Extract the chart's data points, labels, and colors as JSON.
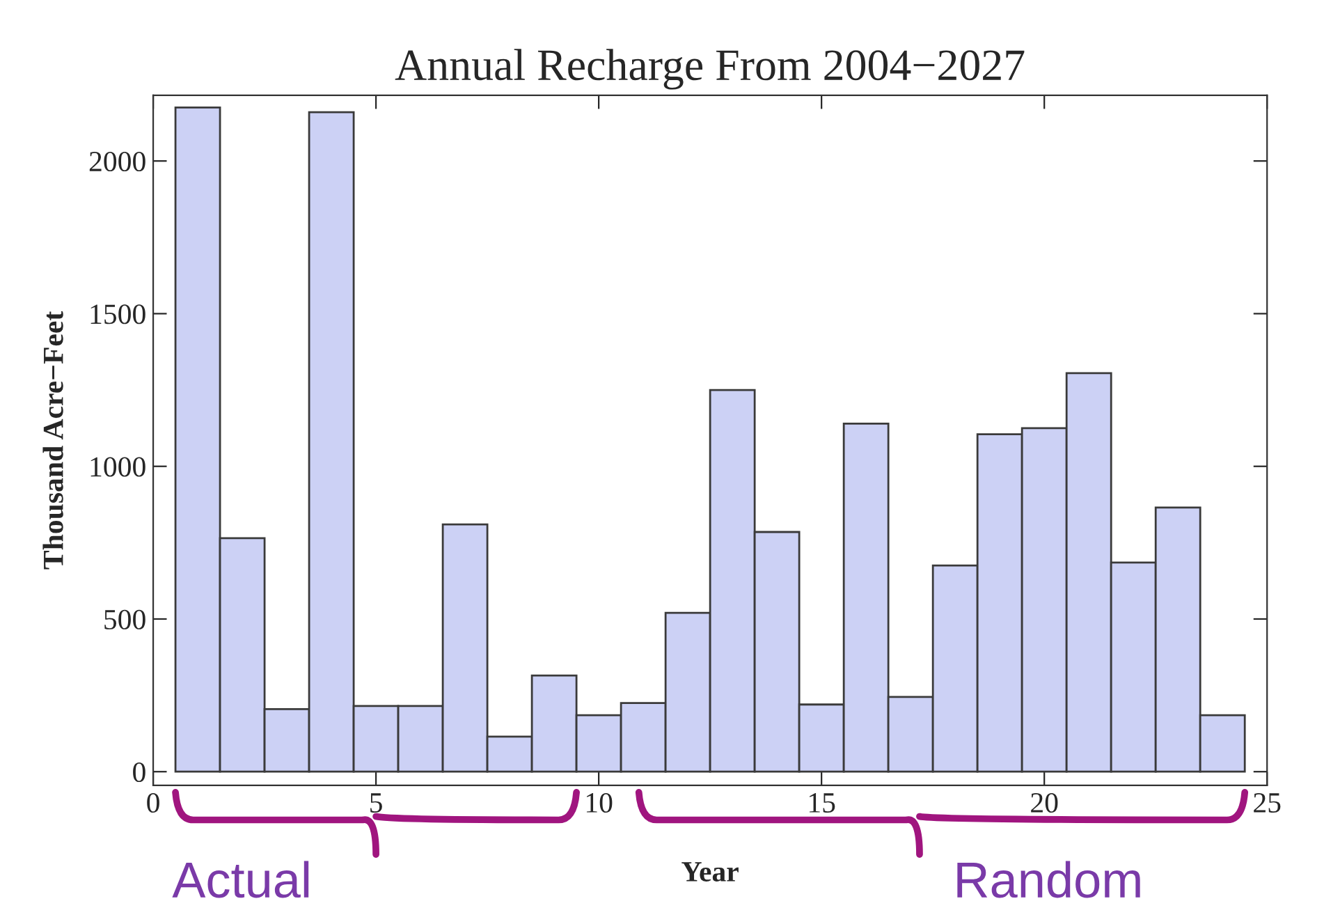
{
  "chart_data": {
    "type": "bar",
    "title": "Annual Recharge From 2004−2027",
    "xlabel": "Year",
    "ylabel": "Thousand Acre−Feet",
    "x": [
      1,
      2,
      3,
      4,
      5,
      6,
      7,
      8,
      9,
      10,
      11,
      12,
      13,
      14,
      15,
      16,
      17,
      18,
      19,
      20,
      21,
      22,
      23,
      24
    ],
    "values": [
      2175,
      765,
      205,
      2160,
      215,
      215,
      810,
      115,
      315,
      185,
      225,
      520,
      1250,
      785,
      220,
      1140,
      245,
      675,
      1105,
      1125,
      1305,
      685,
      865,
      185
    ],
    "color": "#ccd1f5",
    "xlim": [
      0,
      25
    ],
    "xticks": [
      0,
      5,
      10,
      15,
      20,
      25
    ],
    "ylim": [
      -45,
      2215
    ],
    "yticks": [
      0,
      500,
      1000,
      1500,
      2000
    ],
    "grid": false,
    "legend": false,
    "annotations": [
      "Actual",
      "Random"
    ]
  }
}
